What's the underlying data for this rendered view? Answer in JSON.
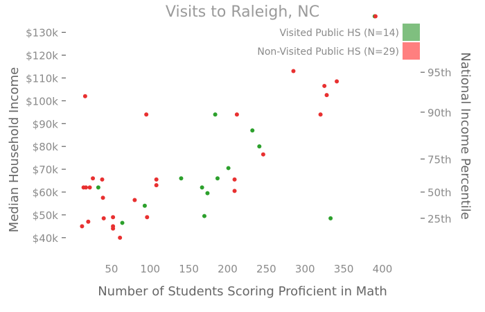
{
  "chart_data": {
    "type": "scatter",
    "title": "Visits to Raleigh, NC",
    "xlabel": "Number of Students Scoring Proficient in Math",
    "ylabel": "Median Household Income",
    "y2label": "National Income Percentile",
    "xlim": [
      0,
      400
    ],
    "ylim": [
      36000,
      132000
    ],
    "xticks": [
      50,
      100,
      150,
      200,
      250,
      300,
      350,
      400
    ],
    "yticks": [
      40000,
      50000,
      60000,
      70000,
      80000,
      90000,
      100000,
      110000,
      120000,
      130000
    ],
    "ytick_labels": [
      "$40k",
      "$50k",
      "$60k",
      "$70k",
      "$80k",
      "$90k",
      "$100k",
      "$110k",
      "$120k",
      "$130k"
    ],
    "y2ticks": [
      {
        "value": 48500,
        "label": "25th"
      },
      {
        "value": 60000,
        "label": "50th"
      },
      {
        "value": 74500,
        "label": "75th"
      },
      {
        "value": 95000,
        "label": "90th"
      },
      {
        "value": 112500,
        "label": "95th"
      }
    ],
    "grid": false,
    "legend_position": "top-right",
    "series": [
      {
        "name": "Visited Public HS (N=14)",
        "color": "#2ca02c",
        "legend_color": "#7fbf7f",
        "points": [
          [
            33,
            62000
          ],
          [
            64,
            46500
          ],
          [
            93,
            54000
          ],
          [
            140,
            66000
          ],
          [
            167,
            62000
          ],
          [
            170,
            49500
          ],
          [
            174,
            59500
          ],
          [
            184,
            94000
          ],
          [
            187,
            66000
          ],
          [
            201,
            70500
          ],
          [
            232,
            87000
          ],
          [
            241,
            80000
          ],
          [
            333,
            48500
          ],
          [
            390,
            137000
          ]
        ]
      },
      {
        "name": "Non-Visited Public HS (N=29)",
        "color": "#e83030",
        "legend_color": "#ff7f7f",
        "points": [
          [
            12,
            45000
          ],
          [
            14,
            62000
          ],
          [
            16,
            102000
          ],
          [
            17,
            62000
          ],
          [
            20,
            47000
          ],
          [
            22,
            62000
          ],
          [
            26,
            66000
          ],
          [
            38,
            65500
          ],
          [
            39,
            57500
          ],
          [
            40,
            48500
          ],
          [
            52,
            49000
          ],
          [
            52,
            45000
          ],
          [
            52,
            44000
          ],
          [
            61,
            40000
          ],
          [
            80,
            56500
          ],
          [
            95,
            94000
          ],
          [
            96,
            49000
          ],
          [
            108,
            65500
          ],
          [
            108,
            63000
          ],
          [
            209,
            60500
          ],
          [
            209,
            65500
          ],
          [
            212,
            94000
          ],
          [
            246,
            76500
          ],
          [
            285,
            113000
          ],
          [
            320,
            94000
          ],
          [
            325,
            106500
          ],
          [
            328,
            102500
          ],
          [
            341,
            108500
          ],
          [
            391,
            137000
          ]
        ]
      }
    ]
  }
}
